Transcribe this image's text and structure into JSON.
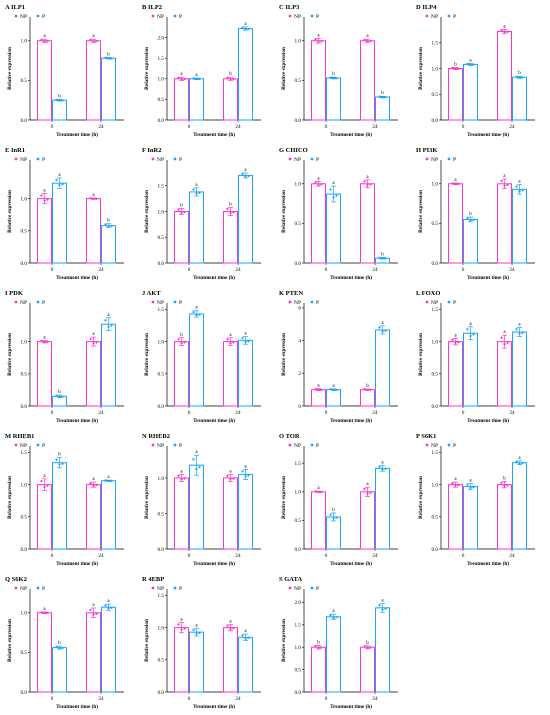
{
  "colors": {
    "NP": "#ff33cc",
    "P": "#1aa3ff",
    "axis": "#000000"
  },
  "legend": {
    "np": "NP",
    "p": "P"
  },
  "xlabel": "Treatment time (h)",
  "ylabel": "Relative expression",
  "chart_data": [
    {
      "type": "bar",
      "title": "A ILP1",
      "categories": [
        "6",
        "24"
      ],
      "ylim": [
        0,
        1.3
      ],
      "yticks": [
        "0.0",
        "0.5",
        "1.0"
      ],
      "series": [
        {
          "name": "NP",
          "values": [
            1.0,
            1.0
          ],
          "err": [
            0.02,
            0.02
          ],
          "labels": [
            "a",
            "a"
          ]
        },
        {
          "name": "P",
          "values": [
            0.25,
            0.78
          ],
          "err": [
            0.01,
            0.01
          ],
          "labels": [
            "b",
            "b"
          ]
        }
      ]
    },
    {
      "type": "bar",
      "title": "B ILP2",
      "categories": [
        "6",
        "24"
      ],
      "ylim": [
        0,
        2.5
      ],
      "yticks": [
        "0.0",
        "0.5",
        "1.0",
        "1.5",
        "2.0"
      ],
      "series": [
        {
          "name": "NP",
          "values": [
            1.0,
            1.0
          ],
          "err": [
            0.04,
            0.04
          ],
          "labels": [
            "a",
            "b"
          ]
        },
        {
          "name": "P",
          "values": [
            1.0,
            2.22
          ],
          "err": [
            0.02,
            0.04
          ],
          "labels": [
            "a",
            "a"
          ]
        }
      ]
    },
    {
      "type": "bar",
      "title": "C ILP3",
      "categories": [
        "6",
        "24"
      ],
      "ylim": [
        0,
        1.3
      ],
      "yticks": [
        "0.0",
        "0.5",
        "1.0"
      ],
      "series": [
        {
          "name": "NP",
          "values": [
            1.0,
            1.0
          ],
          "err": [
            0.03,
            0.02
          ],
          "labels": [
            "a",
            "a"
          ]
        },
        {
          "name": "P",
          "values": [
            0.53,
            0.29
          ],
          "err": [
            0.01,
            0.01
          ],
          "labels": [
            "b",
            "b"
          ]
        }
      ]
    },
    {
      "type": "bar",
      "title": "D ILP4",
      "categories": [
        "6",
        "24"
      ],
      "ylim": [
        0,
        2.0
      ],
      "yticks": [
        "0.0",
        "0.5",
        "1.0",
        "1.5"
      ],
      "series": [
        {
          "name": "NP",
          "values": [
            1.0,
            1.72
          ],
          "err": [
            0.02,
            0.04
          ],
          "labels": [
            "b",
            "a"
          ]
        },
        {
          "name": "P",
          "values": [
            1.08,
            0.83
          ],
          "err": [
            0.02,
            0.02
          ],
          "labels": [
            "a",
            "b"
          ]
        }
      ]
    },
    {
      "type": "bar",
      "title": "E InR1",
      "categories": [
        "6",
        "24"
      ],
      "ylim": [
        0,
        1.6
      ],
      "yticks": [
        "0.0",
        "0.5",
        "1.0"
      ],
      "series": [
        {
          "name": "NP",
          "values": [
            1.0,
            1.0
          ],
          "err": [
            0.08,
            0.01
          ],
          "labels": [
            "a",
            "a"
          ]
        },
        {
          "name": "P",
          "values": [
            1.24,
            0.58
          ],
          "err": [
            0.08,
            0.03
          ],
          "labels": [
            "a",
            "b"
          ]
        }
      ]
    },
    {
      "type": "bar",
      "title": "F InR2",
      "categories": [
        "6",
        "24"
      ],
      "ylim": [
        0,
        2.0
      ],
      "yticks": [
        "0.0",
        "0.5",
        "1.0",
        "1.5"
      ],
      "series": [
        {
          "name": "NP",
          "values": [
            1.0,
            1.0
          ],
          "err": [
            0.06,
            0.08
          ],
          "labels": [
            "b",
            "b"
          ]
        },
        {
          "name": "P",
          "values": [
            1.38,
            1.7
          ],
          "err": [
            0.08,
            0.05
          ],
          "labels": [
            "a",
            "a"
          ]
        }
      ]
    },
    {
      "type": "bar",
      "title": "G CHICO",
      "categories": [
        "6",
        "24"
      ],
      "ylim": [
        0,
        1.3
      ],
      "yticks": [
        "0.0",
        "0.5",
        "1.0"
      ],
      "series": [
        {
          "name": "NP",
          "values": [
            1.0,
            1.0
          ],
          "err": [
            0.03,
            0.05
          ],
          "labels": [
            "a",
            "a"
          ]
        },
        {
          "name": "P",
          "values": [
            0.87,
            0.06
          ],
          "err": [
            0.1,
            0.01
          ],
          "labels": [
            "a",
            "b"
          ]
        }
      ]
    },
    {
      "type": "bar",
      "title": "H PI3K",
      "categories": [
        "6",
        "24"
      ],
      "ylim": [
        0,
        1.3
      ],
      "yticks": [
        "0.0",
        "0.5",
        "1.0"
      ],
      "series": [
        {
          "name": "NP",
          "values": [
            1.0,
            1.0
          ],
          "err": [
            0.01,
            0.06
          ],
          "labels": [
            "a",
            "a"
          ]
        },
        {
          "name": "P",
          "values": [
            0.55,
            0.93
          ],
          "err": [
            0.03,
            0.06
          ],
          "labels": [
            "b",
            "a"
          ]
        }
      ]
    },
    {
      "type": "bar",
      "title": "I PDK",
      "categories": [
        "6",
        "24"
      ],
      "ylim": [
        0,
        1.6
      ],
      "yticks": [
        "0.0",
        "0.5",
        "1.0"
      ],
      "series": [
        {
          "name": "NP",
          "values": [
            1.0,
            1.0
          ],
          "err": [
            0.02,
            0.07
          ],
          "labels": [
            "a",
            "a"
          ]
        },
        {
          "name": "P",
          "values": [
            0.15,
            1.27
          ],
          "err": [
            0.02,
            0.1
          ],
          "labels": [
            "b",
            "a"
          ]
        }
      ]
    },
    {
      "type": "bar",
      "title": "J AKT",
      "categories": [
        "6",
        "24"
      ],
      "ylim": [
        0,
        1.6
      ],
      "yticks": [
        "0.0",
        "0.5",
        "1.0",
        "1.5"
      ],
      "series": [
        {
          "name": "NP",
          "values": [
            1.0,
            1.0
          ],
          "err": [
            0.06,
            0.06
          ],
          "labels": [
            "b",
            "a"
          ]
        },
        {
          "name": "P",
          "values": [
            1.43,
            1.02
          ],
          "err": [
            0.05,
            0.06
          ],
          "labels": [
            "a",
            "a"
          ]
        }
      ]
    },
    {
      "type": "bar",
      "title": "K PTEN",
      "categories": [
        "6",
        "24"
      ],
      "ylim": [
        0,
        6.3
      ],
      "yticks": [
        "0",
        "2",
        "4",
        "6"
      ],
      "series": [
        {
          "name": "NP",
          "values": [
            1.0,
            1.0
          ],
          "err": [
            0.06,
            0.04
          ],
          "labels": [
            "a",
            "b"
          ]
        },
        {
          "name": "P",
          "values": [
            1.0,
            4.65
          ],
          "err": [
            0.05,
            0.25
          ],
          "labels": [
            "a",
            "a"
          ]
        }
      ]
    },
    {
      "type": "bar",
      "title": "L FOXO",
      "categories": [
        "6",
        "24"
      ],
      "ylim": [
        0,
        1.6
      ],
      "yticks": [
        "0.0",
        "0.5",
        "1.0",
        "1.5"
      ],
      "series": [
        {
          "name": "NP",
          "values": [
            1.0,
            1.0
          ],
          "err": [
            0.05,
            0.1
          ],
          "labels": [
            "a",
            "a"
          ]
        },
        {
          "name": "P",
          "values": [
            1.13,
            1.15
          ],
          "err": [
            0.1,
            0.07
          ],
          "labels": [
            "a",
            "a"
          ]
        }
      ]
    },
    {
      "type": "bar",
      "title": "M RHEB1",
      "categories": [
        "6",
        "24"
      ],
      "ylim": [
        0,
        1.6
      ],
      "yticks": [
        "0.0",
        "0.5",
        "1.0",
        "1.5"
      ],
      "series": [
        {
          "name": "NP",
          "values": [
            1.0,
            1.0
          ],
          "err": [
            0.09,
            0.04
          ],
          "labels": [
            "a",
            "a"
          ]
        },
        {
          "name": "P",
          "values": [
            1.34,
            1.06
          ],
          "err": [
            0.08,
            0.01
          ],
          "labels": [
            "b",
            "a"
          ]
        }
      ]
    },
    {
      "type": "bar",
      "title": "N RHEB2",
      "categories": [
        "6",
        "24"
      ],
      "ylim": [
        0,
        1.45
      ],
      "yticks": [
        "0.0",
        "0.5",
        "1.0"
      ],
      "series": [
        {
          "name": "NP",
          "values": [
            1.0,
            1.0
          ],
          "err": [
            0.05,
            0.05
          ],
          "labels": [
            "a",
            "a"
          ]
        },
        {
          "name": "P",
          "values": [
            1.18,
            1.05
          ],
          "err": [
            0.14,
            0.07
          ],
          "labels": [
            "a",
            "a"
          ]
        }
      ]
    },
    {
      "type": "bar",
      "title": "O TOR",
      "categories": [
        "6",
        "24"
      ],
      "ylim": [
        0,
        1.8
      ],
      "yticks": [
        "0.0",
        "0.5",
        "1.0",
        "1.5"
      ],
      "series": [
        {
          "name": "NP",
          "values": [
            1.0,
            1.0
          ],
          "err": [
            0.01,
            0.08
          ],
          "labels": [
            "a",
            "a"
          ]
        },
        {
          "name": "P",
          "values": [
            0.56,
            1.41
          ],
          "err": [
            0.07,
            0.05
          ],
          "labels": [
            "b",
            "a"
          ]
        }
      ]
    },
    {
      "type": "bar",
      "title": "P S6K1",
      "categories": [
        "6",
        "24"
      ],
      "ylim": [
        0,
        1.6
      ],
      "yticks": [
        "0.0",
        "0.5",
        "1.0",
        "1.5"
      ],
      "series": [
        {
          "name": "NP",
          "values": [
            1.0,
            1.0
          ],
          "err": [
            0.04,
            0.05
          ],
          "labels": [
            "a",
            "b"
          ]
        },
        {
          "name": "P",
          "values": [
            0.97,
            1.34
          ],
          "err": [
            0.05,
            0.03
          ],
          "labels": [
            "a",
            "a"
          ]
        }
      ]
    },
    {
      "type": "bar",
      "title": "Q S6K2",
      "categories": [
        "6",
        "24"
      ],
      "ylim": [
        0,
        1.3
      ],
      "yticks": [
        "0.0",
        "0.5",
        "1.0"
      ],
      "series": [
        {
          "name": "NP",
          "values": [
            1.0,
            1.0
          ],
          "err": [
            0.01,
            0.06
          ],
          "labels": [
            "a",
            "a"
          ]
        },
        {
          "name": "P",
          "values": [
            0.56,
            1.07
          ],
          "err": [
            0.02,
            0.04
          ],
          "labels": [
            "b",
            "a"
          ]
        }
      ]
    },
    {
      "type": "bar",
      "title": "R 4EBP",
      "categories": [
        "6",
        "24"
      ],
      "ylim": [
        0,
        1.6
      ],
      "yticks": [
        "0.0",
        "0.5",
        "1.0",
        "1.5"
      ],
      "series": [
        {
          "name": "NP",
          "values": [
            1.0,
            1.0
          ],
          "err": [
            0.08,
            0.05
          ],
          "labels": [
            "a",
            "a"
          ]
        },
        {
          "name": "P",
          "values": [
            0.93,
            0.85
          ],
          "err": [
            0.06,
            0.05
          ],
          "labels": [
            "a",
            "a"
          ]
        }
      ]
    },
    {
      "type": "bar",
      "title": "S GATA",
      "categories": [
        "6",
        "24"
      ],
      "ylim": [
        0,
        2.3
      ],
      "yticks": [
        "0.0",
        "0.5",
        "1.0",
        "1.5",
        "2.0"
      ],
      "series": [
        {
          "name": "NP",
          "values": [
            1.0,
            1.0
          ],
          "err": [
            0.04,
            0.03
          ],
          "labels": [
            "b",
            "b"
          ]
        },
        {
          "name": "P",
          "values": [
            1.68,
            1.88
          ],
          "err": [
            0.06,
            0.1
          ],
          "labels": [
            "a",
            "a"
          ]
        }
      ]
    }
  ]
}
